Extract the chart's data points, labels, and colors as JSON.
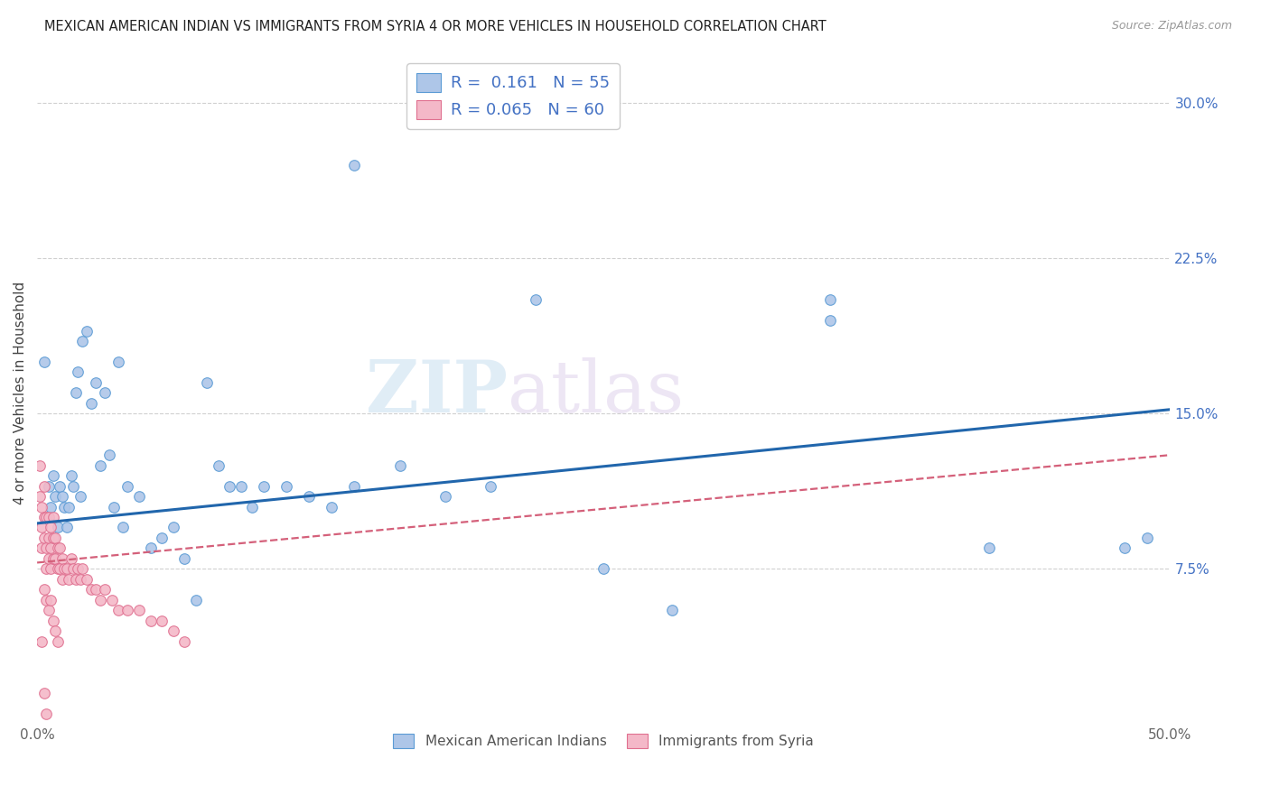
{
  "title": "MEXICAN AMERICAN INDIAN VS IMMIGRANTS FROM SYRIA 4 OR MORE VEHICLES IN HOUSEHOLD CORRELATION CHART",
  "source": "Source: ZipAtlas.com",
  "ylabel": "4 or more Vehicles in Household",
  "xlim": [
    0.0,
    0.5
  ],
  "ylim": [
    0.0,
    0.32
  ],
  "xticks": [
    0.0,
    0.1,
    0.2,
    0.3,
    0.4,
    0.5
  ],
  "xticklabels": [
    "0.0%",
    "",
    "",
    "",
    "",
    "50.0%"
  ],
  "yticks_right": [
    0.075,
    0.15,
    0.225,
    0.3
  ],
  "ytick_labels_right": [
    "7.5%",
    "15.0%",
    "22.5%",
    "30.0%"
  ],
  "watermark_part1": "ZIP",
  "watermark_part2": "atlas",
  "legend_blue_R": "0.161",
  "legend_blue_N": "55",
  "legend_pink_R": "0.065",
  "legend_pink_N": "60",
  "legend_blue_label": "Mexican American Indians",
  "legend_pink_label": "Immigrants from Syria",
  "blue_color": "#aec6e8",
  "pink_color": "#f4b8c8",
  "blue_edge_color": "#5b9bd5",
  "pink_edge_color": "#e07090",
  "blue_line_color": "#2166ac",
  "pink_line_color": "#d4607a",
  "scatter_size": 70,
  "blue_x": [
    0.003,
    0.005,
    0.006,
    0.007,
    0.008,
    0.009,
    0.01,
    0.011,
    0.012,
    0.013,
    0.014,
    0.015,
    0.016,
    0.017,
    0.018,
    0.019,
    0.02,
    0.022,
    0.024,
    0.026,
    0.028,
    0.03,
    0.032,
    0.034,
    0.036,
    0.038,
    0.04,
    0.045,
    0.05,
    0.055,
    0.06,
    0.065,
    0.07,
    0.075,
    0.08,
    0.085,
    0.09,
    0.095,
    0.1,
    0.11,
    0.12,
    0.13,
    0.14,
    0.16,
    0.18,
    0.2,
    0.22,
    0.25,
    0.28,
    0.35,
    0.42,
    0.48,
    0.49,
    0.35,
    0.14
  ],
  "blue_y": [
    0.175,
    0.115,
    0.105,
    0.12,
    0.11,
    0.095,
    0.115,
    0.11,
    0.105,
    0.095,
    0.105,
    0.12,
    0.115,
    0.16,
    0.17,
    0.11,
    0.185,
    0.19,
    0.155,
    0.165,
    0.125,
    0.16,
    0.13,
    0.105,
    0.175,
    0.095,
    0.115,
    0.11,
    0.085,
    0.09,
    0.095,
    0.08,
    0.06,
    0.165,
    0.125,
    0.115,
    0.115,
    0.105,
    0.115,
    0.115,
    0.11,
    0.105,
    0.27,
    0.125,
    0.11,
    0.115,
    0.205,
    0.075,
    0.055,
    0.195,
    0.085,
    0.085,
    0.09,
    0.205,
    0.115
  ],
  "pink_x": [
    0.001,
    0.001,
    0.002,
    0.002,
    0.002,
    0.003,
    0.003,
    0.003,
    0.004,
    0.004,
    0.004,
    0.005,
    0.005,
    0.005,
    0.006,
    0.006,
    0.006,
    0.007,
    0.007,
    0.007,
    0.008,
    0.008,
    0.009,
    0.009,
    0.01,
    0.01,
    0.011,
    0.011,
    0.012,
    0.013,
    0.014,
    0.015,
    0.016,
    0.017,
    0.018,
    0.019,
    0.02,
    0.022,
    0.024,
    0.026,
    0.028,
    0.03,
    0.033,
    0.036,
    0.04,
    0.045,
    0.05,
    0.055,
    0.06,
    0.065,
    0.004,
    0.005,
    0.003,
    0.006,
    0.002,
    0.007,
    0.008,
    0.009,
    0.003,
    0.004
  ],
  "pink_y": [
    0.125,
    0.11,
    0.105,
    0.095,
    0.085,
    0.115,
    0.1,
    0.09,
    0.1,
    0.085,
    0.075,
    0.1,
    0.09,
    0.08,
    0.095,
    0.085,
    0.075,
    0.1,
    0.09,
    0.08,
    0.09,
    0.08,
    0.085,
    0.075,
    0.085,
    0.075,
    0.08,
    0.07,
    0.075,
    0.075,
    0.07,
    0.08,
    0.075,
    0.07,
    0.075,
    0.07,
    0.075,
    0.07,
    0.065,
    0.065,
    0.06,
    0.065,
    0.06,
    0.055,
    0.055,
    0.055,
    0.05,
    0.05,
    0.045,
    0.04,
    0.06,
    0.055,
    0.065,
    0.06,
    0.04,
    0.05,
    0.045,
    0.04,
    0.015,
    0.005
  ],
  "blue_trend_x": [
    0.0,
    0.5
  ],
  "blue_trend_y": [
    0.097,
    0.152
  ],
  "pink_trend_x": [
    0.0,
    0.5
  ],
  "pink_trend_y": [
    0.078,
    0.13
  ]
}
